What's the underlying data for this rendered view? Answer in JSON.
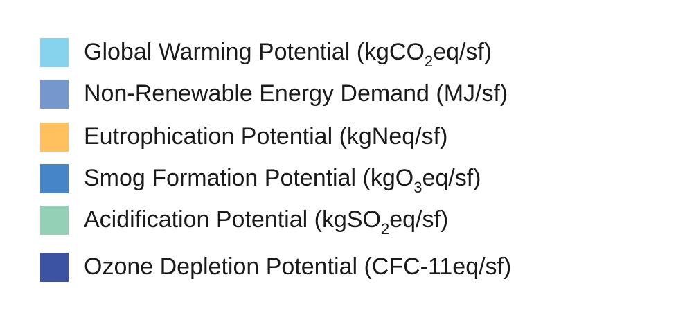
{
  "chart_data": {
    "type": "legend",
    "legend": {
      "entries": [
        {
          "pre": "Global Warming Potential (kgCO",
          "sub": "2",
          "post": "eq/sf)",
          "color": "#87d2ec"
        },
        {
          "pre": "Non-Renewable Energy Demand (MJ/sf)",
          "sub": "",
          "post": "",
          "color": "#7597ce"
        },
        {
          "pre": "Eutrophication Potential (kgNeq/sf)",
          "sub": "",
          "post": "",
          "color": "#fec15e"
        },
        {
          "pre": "Smog Formation Potential (kgO",
          "sub": "3",
          "post": "eq/sf)",
          "color": "#4686c8"
        },
        {
          "pre": "Acidification Potential (kgSO",
          "sub": "2",
          "post": "eq/sf)",
          "color": "#93d0b6"
        },
        {
          "pre": "Ozone Depletion Potential (CFC-11eq/sf)",
          "sub": "",
          "post": "",
          "color": "#3c52a3"
        }
      ]
    }
  }
}
